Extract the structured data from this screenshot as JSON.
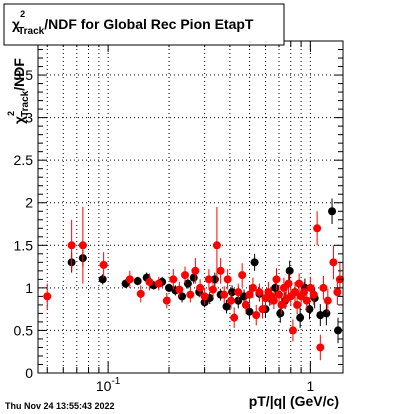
{
  "chart_data": {
    "type": "scatter",
    "title": "χ²_Track/NDF for Global Rec Pion EtapT",
    "title_parts": {
      "pre": "χ",
      "sup": "2",
      "sub": "Track",
      "post": "/NDF for Global Rec Pion EtapT"
    },
    "ylabel_parts": {
      "pre": "χ",
      "sup": "2",
      "sub": "Track",
      "post": "/NDF"
    },
    "xlabel": "pT/|q| (GeV/c)",
    "xscale": "log",
    "xlim": [
      0.045,
      1.45
    ],
    "ylim": [
      0,
      3.9
    ],
    "grid": true,
    "xticks": [
      {
        "value": 0.1,
        "base": "10",
        "exp": "-1"
      },
      {
        "value": 1,
        "label": "1"
      }
    ],
    "yticks": [
      "0",
      "0.5",
      "1",
      "1.5",
      "2",
      "2.5",
      "3",
      "3.5"
    ],
    "series": [
      {
        "color": "#000000",
        "points": [
          {
            "x": 0.066,
            "y": 1.3,
            "ey": 0.12
          },
          {
            "x": 0.075,
            "y": 1.35,
            "ey": 0.1
          },
          {
            "x": 0.094,
            "y": 1.1,
            "ey": 0.06
          },
          {
            "x": 0.122,
            "y": 1.05,
            "ey": 0.05
          },
          {
            "x": 0.14,
            "y": 1.08,
            "ey": 0.05
          },
          {
            "x": 0.155,
            "y": 1.12,
            "ey": 0.06
          },
          {
            "x": 0.168,
            "y": 1.03,
            "ey": 0.05
          },
          {
            "x": 0.185,
            "y": 1.07,
            "ey": 0.06
          },
          {
            "x": 0.2,
            "y": 1.0,
            "ey": 0.05
          },
          {
            "x": 0.215,
            "y": 0.97,
            "ey": 0.06
          },
          {
            "x": 0.232,
            "y": 0.9,
            "ey": 0.07
          },
          {
            "x": 0.248,
            "y": 1.05,
            "ey": 0.06
          },
          {
            "x": 0.265,
            "y": 1.12,
            "ey": 0.07
          },
          {
            "x": 0.282,
            "y": 0.95,
            "ey": 0.06
          },
          {
            "x": 0.3,
            "y": 0.83,
            "ey": 0.06
          },
          {
            "x": 0.318,
            "y": 0.88,
            "ey": 0.07
          },
          {
            "x": 0.337,
            "y": 1.1,
            "ey": 0.08
          },
          {
            "x": 0.36,
            "y": 0.92,
            "ey": 0.07
          },
          {
            "x": 0.385,
            "y": 0.78,
            "ey": 0.08
          },
          {
            "x": 0.41,
            "y": 0.95,
            "ey": 0.08
          },
          {
            "x": 0.44,
            "y": 0.85,
            "ey": 0.09
          },
          {
            "x": 0.47,
            "y": 0.9,
            "ey": 0.08
          },
          {
            "x": 0.5,
            "y": 0.72,
            "ey": 0.09
          },
          {
            "x": 0.53,
            "y": 1.3,
            "ey": 0.1
          },
          {
            "x": 0.56,
            "y": 0.93,
            "ey": 0.09
          },
          {
            "x": 0.6,
            "y": 0.75,
            "ey": 0.1
          },
          {
            "x": 0.63,
            "y": 0.88,
            "ey": 0.09
          },
          {
            "x": 0.67,
            "y": 1.0,
            "ey": 0.1
          },
          {
            "x": 0.71,
            "y": 0.7,
            "ey": 0.11
          },
          {
            "x": 0.75,
            "y": 0.85,
            "ey": 0.1
          },
          {
            "x": 0.79,
            "y": 1.2,
            "ey": 0.12
          },
          {
            "x": 0.84,
            "y": 0.95,
            "ey": 0.11
          },
          {
            "x": 0.89,
            "y": 0.65,
            "ey": 0.12
          },
          {
            "x": 0.94,
            "y": 1.0,
            "ey": 0.11
          },
          {
            "x": 0.99,
            "y": 0.75,
            "ey": 0.12
          },
          {
            "x": 1.05,
            "y": 0.88,
            "ey": 0.12
          },
          {
            "x": 1.12,
            "y": 0.68,
            "ey": 0.13
          },
          {
            "x": 1.2,
            "y": 0.7,
            "ey": 0.14
          },
          {
            "x": 1.28,
            "y": 1.9,
            "ey": 0.15
          },
          {
            "x": 1.37,
            "y": 0.5,
            "ey": 0.15
          }
        ]
      },
      {
        "color": "#ff0000",
        "points": [
          {
            "x": 0.05,
            "y": 0.9,
            "ey": 0.15
          },
          {
            "x": 0.066,
            "y": 1.5,
            "ey": 0.3
          },
          {
            "x": 0.075,
            "y": 1.5,
            "ey": 0.45
          },
          {
            "x": 0.095,
            "y": 1.27,
            "ey": 0.15
          },
          {
            "x": 0.128,
            "y": 1.1,
            "ey": 0.1
          },
          {
            "x": 0.145,
            "y": 0.93,
            "ey": 0.1
          },
          {
            "x": 0.16,
            "y": 1.07,
            "ey": 0.1
          },
          {
            "x": 0.178,
            "y": 1.05,
            "ey": 0.08
          },
          {
            "x": 0.195,
            "y": 0.85,
            "ey": 0.09
          },
          {
            "x": 0.21,
            "y": 1.1,
            "ey": 0.12
          },
          {
            "x": 0.225,
            "y": 0.98,
            "ey": 0.09
          },
          {
            "x": 0.24,
            "y": 1.15,
            "ey": 0.1
          },
          {
            "x": 0.255,
            "y": 0.92,
            "ey": 0.09
          },
          {
            "x": 0.27,
            "y": 1.2,
            "ey": 0.15
          },
          {
            "x": 0.285,
            "y": 1.0,
            "ey": 0.1
          },
          {
            "x": 0.3,
            "y": 0.9,
            "ey": 0.1
          },
          {
            "x": 0.315,
            "y": 1.1,
            "ey": 0.12
          },
          {
            "x": 0.33,
            "y": 0.98,
            "ey": 0.1
          },
          {
            "x": 0.345,
            "y": 1.5,
            "ey": 0.45
          },
          {
            "x": 0.36,
            "y": 1.2,
            "ey": 0.15
          },
          {
            "x": 0.375,
            "y": 0.92,
            "ey": 0.1
          },
          {
            "x": 0.39,
            "y": 1.1,
            "ey": 0.12
          },
          {
            "x": 0.405,
            "y": 0.85,
            "ey": 0.1
          },
          {
            "x": 0.42,
            "y": 0.65,
            "ey": 0.12
          },
          {
            "x": 0.44,
            "y": 0.95,
            "ey": 0.1
          },
          {
            "x": 0.46,
            "y": 1.15,
            "ey": 0.14
          },
          {
            "x": 0.48,
            "y": 0.8,
            "ey": 0.1
          },
          {
            "x": 0.5,
            "y": 0.92,
            "ey": 0.1
          },
          {
            "x": 0.52,
            "y": 1.0,
            "ey": 0.12
          },
          {
            "x": 0.54,
            "y": 0.68,
            "ey": 0.12
          },
          {
            "x": 0.56,
            "y": 0.95,
            "ey": 0.1
          },
          {
            "x": 0.58,
            "y": 0.75,
            "ey": 0.11
          },
          {
            "x": 0.6,
            "y": 0.88,
            "ey": 0.1
          },
          {
            "x": 0.62,
            "y": 0.95,
            "ey": 0.12
          },
          {
            "x": 0.64,
            "y": 0.9,
            "ey": 0.1
          },
          {
            "x": 0.66,
            "y": 0.85,
            "ey": 0.1
          },
          {
            "x": 0.68,
            "y": 1.1,
            "ey": 0.13
          },
          {
            "x": 0.7,
            "y": 0.92,
            "ey": 0.1
          },
          {
            "x": 0.72,
            "y": 0.8,
            "ey": 0.11
          },
          {
            "x": 0.74,
            "y": 1.0,
            "ey": 0.12
          },
          {
            "x": 0.76,
            "y": 0.87,
            "ey": 0.1
          },
          {
            "x": 0.78,
            "y": 1.05,
            "ey": 0.12
          },
          {
            "x": 0.8,
            "y": 0.9,
            "ey": 0.11
          },
          {
            "x": 0.82,
            "y": 0.5,
            "ey": 0.13
          },
          {
            "x": 0.84,
            "y": 0.95,
            "ey": 0.12
          },
          {
            "x": 0.86,
            "y": 0.8,
            "ey": 0.11
          },
          {
            "x": 0.88,
            "y": 1.05,
            "ey": 0.12
          },
          {
            "x": 0.9,
            "y": 0.9,
            "ey": 0.11
          },
          {
            "x": 0.93,
            "y": 0.95,
            "ey": 0.12
          },
          {
            "x": 0.96,
            "y": 0.85,
            "ey": 0.12
          },
          {
            "x": 1.0,
            "y": 1.0,
            "ey": 0.13
          },
          {
            "x": 1.04,
            "y": 0.92,
            "ey": 0.12
          },
          {
            "x": 1.08,
            "y": 1.7,
            "ey": 0.2
          },
          {
            "x": 1.12,
            "y": 0.3,
            "ey": 0.15
          },
          {
            "x": 1.16,
            "y": 1.0,
            "ey": 0.14
          },
          {
            "x": 1.22,
            "y": 0.85,
            "ey": 0.14
          },
          {
            "x": 1.3,
            "y": 1.3,
            "ey": 0.2
          },
          {
            "x": 1.36,
            "y": 0.95,
            "ey": 0.15
          },
          {
            "x": 1.4,
            "y": 1.1,
            "ey": 0.2
          }
        ]
      }
    ]
  },
  "footer": {
    "timestamp": "Thu Nov 24 13:55:43 2022"
  }
}
